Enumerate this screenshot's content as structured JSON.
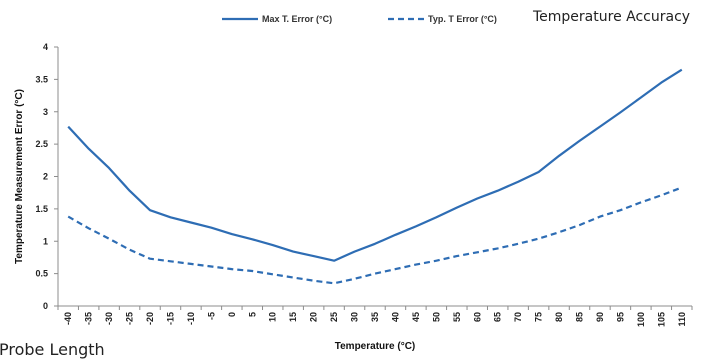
{
  "chart_data": {
    "type": "line",
    "title": "Temperature Accuracy",
    "xlabel": "Temperature (°C)",
    "ylabel": "Temperature Measurement Error (°C)",
    "x": [
      -40,
      -35,
      -30,
      -25,
      -20,
      -15,
      -10,
      -5,
      0,
      5,
      10,
      15,
      20,
      25,
      30,
      35,
      40,
      45,
      50,
      55,
      60,
      65,
      70,
      75,
      80,
      85,
      90,
      95,
      100,
      105,
      110
    ],
    "x_tick_labels": [
      "-40",
      "-35",
      "-30",
      "-25",
      "-20",
      "-15",
      "-10",
      "-5",
      "0",
      "5",
      "10",
      "15",
      "20",
      "25",
      "30",
      "35",
      "40",
      "45",
      "50",
      "55",
      "60",
      "65",
      "70",
      "75",
      "80",
      "85",
      "90",
      "95",
      "100",
      "105",
      "110"
    ],
    "ylim": [
      0,
      4
    ],
    "y_ticks": [
      0,
      0.5,
      1,
      1.5,
      2,
      2.5,
      3,
      3.5,
      4
    ],
    "y_tick_labels": [
      "0",
      "0.5",
      "1",
      "1.5",
      "2",
      "2.5",
      "3",
      "3.5",
      "4"
    ],
    "grid": false,
    "legend_position": "top",
    "series": [
      {
        "name": "Max T. Error (°C)",
        "style": "solid",
        "color": "#2E6DB4",
        "values": [
          2.77,
          2.43,
          2.13,
          1.78,
          1.48,
          1.37,
          1.29,
          1.21,
          1.11,
          1.03,
          0.94,
          0.84,
          0.77,
          0.7,
          0.84,
          0.96,
          1.1,
          1.23,
          1.37,
          1.52,
          1.66,
          1.78,
          1.92,
          2.07,
          2.32,
          2.55,
          2.77,
          2.99,
          3.22,
          3.45,
          3.65
        ]
      },
      {
        "name": "Typ. T Error (°C)",
        "style": "dashed",
        "color": "#2E6DB4",
        "values": [
          1.38,
          1.2,
          1.04,
          0.87,
          0.73,
          0.69,
          0.65,
          0.61,
          0.57,
          0.54,
          0.49,
          0.44,
          0.39,
          0.35,
          0.42,
          0.5,
          0.57,
          0.64,
          0.7,
          0.77,
          0.83,
          0.89,
          0.96,
          1.04,
          1.14,
          1.25,
          1.38,
          1.48,
          1.6,
          1.71,
          1.83
        ]
      }
    ]
  },
  "cut_off_text": "Probe Length"
}
